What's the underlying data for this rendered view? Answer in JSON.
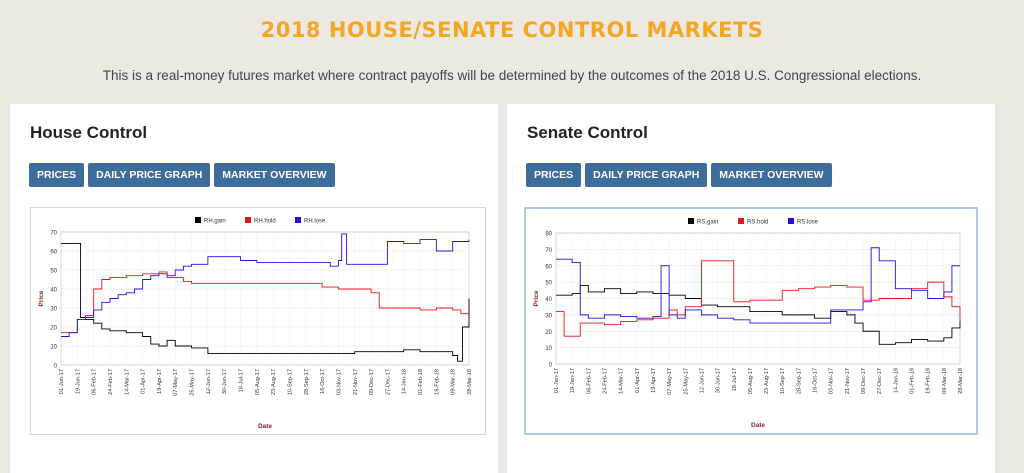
{
  "header": {
    "title": "2018 HOUSE/SENATE CONTROL MARKETS",
    "subtitle": "This is a real-money futures market where contract payoffs will be determined by the outcomes of the 2018 U.S. Congressional elections."
  },
  "panels": [
    {
      "title": "House Control",
      "buttons": [
        "PRICES",
        "DAILY PRICE GRAPH",
        "MARKET OVERVIEW"
      ]
    },
    {
      "title": "Senate Control",
      "buttons": [
        "PRICES",
        "DAILY PRICE GRAPH",
        "MARKET OVERVIEW"
      ]
    }
  ],
  "colors": {
    "title": "#f5a623",
    "button": "#3f6d9b",
    "gain": "#000000",
    "hold": "#e8141b",
    "lose": "#2211dd"
  },
  "chart_data": [
    {
      "type": "line",
      "title": "",
      "xlabel": "Date",
      "ylabel": "Price",
      "ylim": [
        0,
        70
      ],
      "yticks": [
        0,
        10,
        20,
        30,
        40,
        50,
        60,
        70
      ],
      "x_ticks": [
        "01-Jun-17",
        "19-Jun-17",
        "06-Feb-17",
        "24-Feb-17",
        "14-Mar-17",
        "01-Apr-17",
        "19-Apr-17",
        "07-May-17",
        "25-May-17",
        "12-Jun-17",
        "30-Jun-17",
        "18-Jul-17",
        "05-Aug-17",
        "23-Aug-17",
        "10-Sep-17",
        "28-Sep-17",
        "16-Oct-17",
        "03-Nov-17",
        "21-Nov-17",
        "09-Dec-17",
        "27-Dec-17",
        "14-Jan-18",
        "01-Feb-18",
        "19-Feb-18",
        "09-Mar-18",
        "28-Mar-18"
      ],
      "legend_position": "top",
      "grid": true,
      "series": [
        {
          "name": "RH.gain",
          "color": "#000000",
          "x": [
            0,
            1,
            1.2,
            1.5,
            2,
            2.5,
            3,
            4,
            5,
            5.5,
            6,
            6.5,
            7,
            7.5,
            8,
            9,
            9.5,
            10,
            11,
            12,
            13,
            14,
            15,
            16,
            17,
            18,
            19,
            20,
            21,
            22,
            23,
            24,
            24.3,
            24.6,
            25
          ],
          "values": [
            64,
            64,
            25,
            24,
            22,
            19,
            18,
            17,
            15,
            11,
            10,
            13,
            10,
            10,
            9,
            6,
            6,
            6,
            6,
            6,
            6,
            6,
            6,
            6,
            6,
            7,
            7,
            7,
            8,
            7,
            7,
            5,
            2,
            20,
            35
          ]
        },
        {
          "name": "RH.hold",
          "color": "#e8141b",
          "x": [
            0,
            0.5,
            1,
            1.5,
            2,
            2.5,
            3,
            4,
            5,
            5.5,
            6,
            6.5,
            7,
            7.5,
            8,
            9,
            10,
            11,
            12,
            13,
            14,
            15,
            16,
            17,
            18,
            19,
            19.5,
            20,
            21,
            22,
            23,
            24,
            24.5,
            25
          ],
          "values": [
            17,
            17,
            24,
            26,
            40,
            45,
            46,
            47,
            48,
            48,
            49,
            46,
            46,
            44,
            43,
            43,
            43,
            43,
            43,
            43,
            43,
            43,
            41,
            40,
            40,
            38,
            30,
            30,
            30,
            29,
            30,
            29,
            27,
            27
          ]
        },
        {
          "name": "RH.lose",
          "color": "#2211dd",
          "x": [
            0,
            0.5,
            1,
            1.5,
            2,
            2.5,
            3,
            3.5,
            4,
            4.5,
            5,
            5.5,
            6,
            6.5,
            7,
            7.5,
            8,
            9,
            10,
            11,
            12,
            13,
            14,
            15,
            16,
            16.5,
            17,
            17.2,
            17.5,
            18,
            19,
            19.5,
            20,
            21,
            22,
            23,
            24,
            25
          ],
          "values": [
            15,
            17,
            24,
            25,
            29,
            33,
            35,
            37,
            38,
            40,
            45,
            47,
            48,
            47,
            50,
            52,
            53,
            57,
            57,
            55,
            54,
            54,
            54,
            54,
            54,
            52,
            55,
            69,
            53,
            53,
            53,
            53,
            65,
            64,
            66,
            60,
            65,
            66
          ]
        }
      ]
    },
    {
      "type": "line",
      "title": "",
      "xlabel": "Date",
      "ylabel": "Price",
      "ylim": [
        0,
        80
      ],
      "yticks": [
        0,
        10,
        20,
        30,
        40,
        50,
        60,
        70,
        80
      ],
      "x_ticks": [
        "01-Jan-17",
        "19-Jan-17",
        "06-Feb-17",
        "24-Feb-17",
        "14-Mar-17",
        "01-Apr-17",
        "19-Apr-17",
        "07-May-17",
        "25-May-17",
        "12-Jun-17",
        "30-Jun-17",
        "18-Jul-17",
        "05-Aug-17",
        "23-Aug-17",
        "10-Sep-17",
        "28-Sep-17",
        "16-Oct-17",
        "03-Nov-17",
        "21-Nov-17",
        "09-Dec-17",
        "27-Dec-17",
        "14-Jan-18",
        "01-Feb-18",
        "19-Feb-18",
        "09-Mar-18",
        "28-Mar-18"
      ],
      "legend_position": "top",
      "grid": true,
      "series": [
        {
          "name": "RS.gain",
          "color": "#000000",
          "x": [
            0,
            0.5,
            1,
            1.5,
            2,
            2.5,
            3,
            4,
            5,
            6,
            7,
            7.5,
            8,
            9,
            10,
            11,
            12,
            13,
            14,
            15,
            16,
            17,
            18,
            18.5,
            19,
            20,
            21,
            22,
            23,
            24,
            24.5,
            25
          ],
          "values": [
            42,
            42,
            43,
            48,
            44,
            44,
            46,
            43,
            44,
            43,
            42,
            42,
            40,
            36,
            35,
            35,
            32,
            32,
            30,
            30,
            28,
            32,
            30,
            25,
            20,
            12,
            13,
            15,
            14,
            16,
            22,
            27
          ]
        },
        {
          "name": "RS.hold",
          "color": "#e8141b",
          "x": [
            0,
            0.5,
            1,
            1.5,
            2,
            3,
            4,
            5,
            6,
            7,
            7.5,
            8,
            9,
            10,
            11,
            12,
            13,
            14,
            15,
            16,
            17,
            18,
            19,
            20,
            21,
            22,
            23,
            24,
            24.5,
            25
          ],
          "values": [
            32,
            17,
            17,
            25,
            25,
            24,
            26,
            27,
            28,
            33,
            30,
            35,
            63,
            63,
            38,
            39,
            39,
            45,
            46,
            47,
            48,
            47,
            39,
            40,
            40,
            46,
            50,
            41,
            35,
            26
          ]
        },
        {
          "name": "RS.lose",
          "color": "#2211dd",
          "x": [
            0,
            0.5,
            1,
            1.5,
            2,
            2.5,
            3,
            4,
            5,
            6,
            6.5,
            7,
            7.5,
            8,
            9,
            10,
            11,
            12,
            13,
            14,
            15,
            16,
            17,
            18,
            19,
            19.5,
            20,
            20.5,
            21,
            22,
            23,
            24,
            24.5,
            25
          ],
          "values": [
            64,
            64,
            62,
            30,
            28,
            28,
            30,
            29,
            28,
            29,
            60,
            30,
            28,
            33,
            30,
            28,
            27,
            25,
            25,
            25,
            25,
            25,
            33,
            33,
            38,
            71,
            63,
            63,
            46,
            45,
            40,
            44,
            60,
            60
          ]
        }
      ]
    }
  ]
}
